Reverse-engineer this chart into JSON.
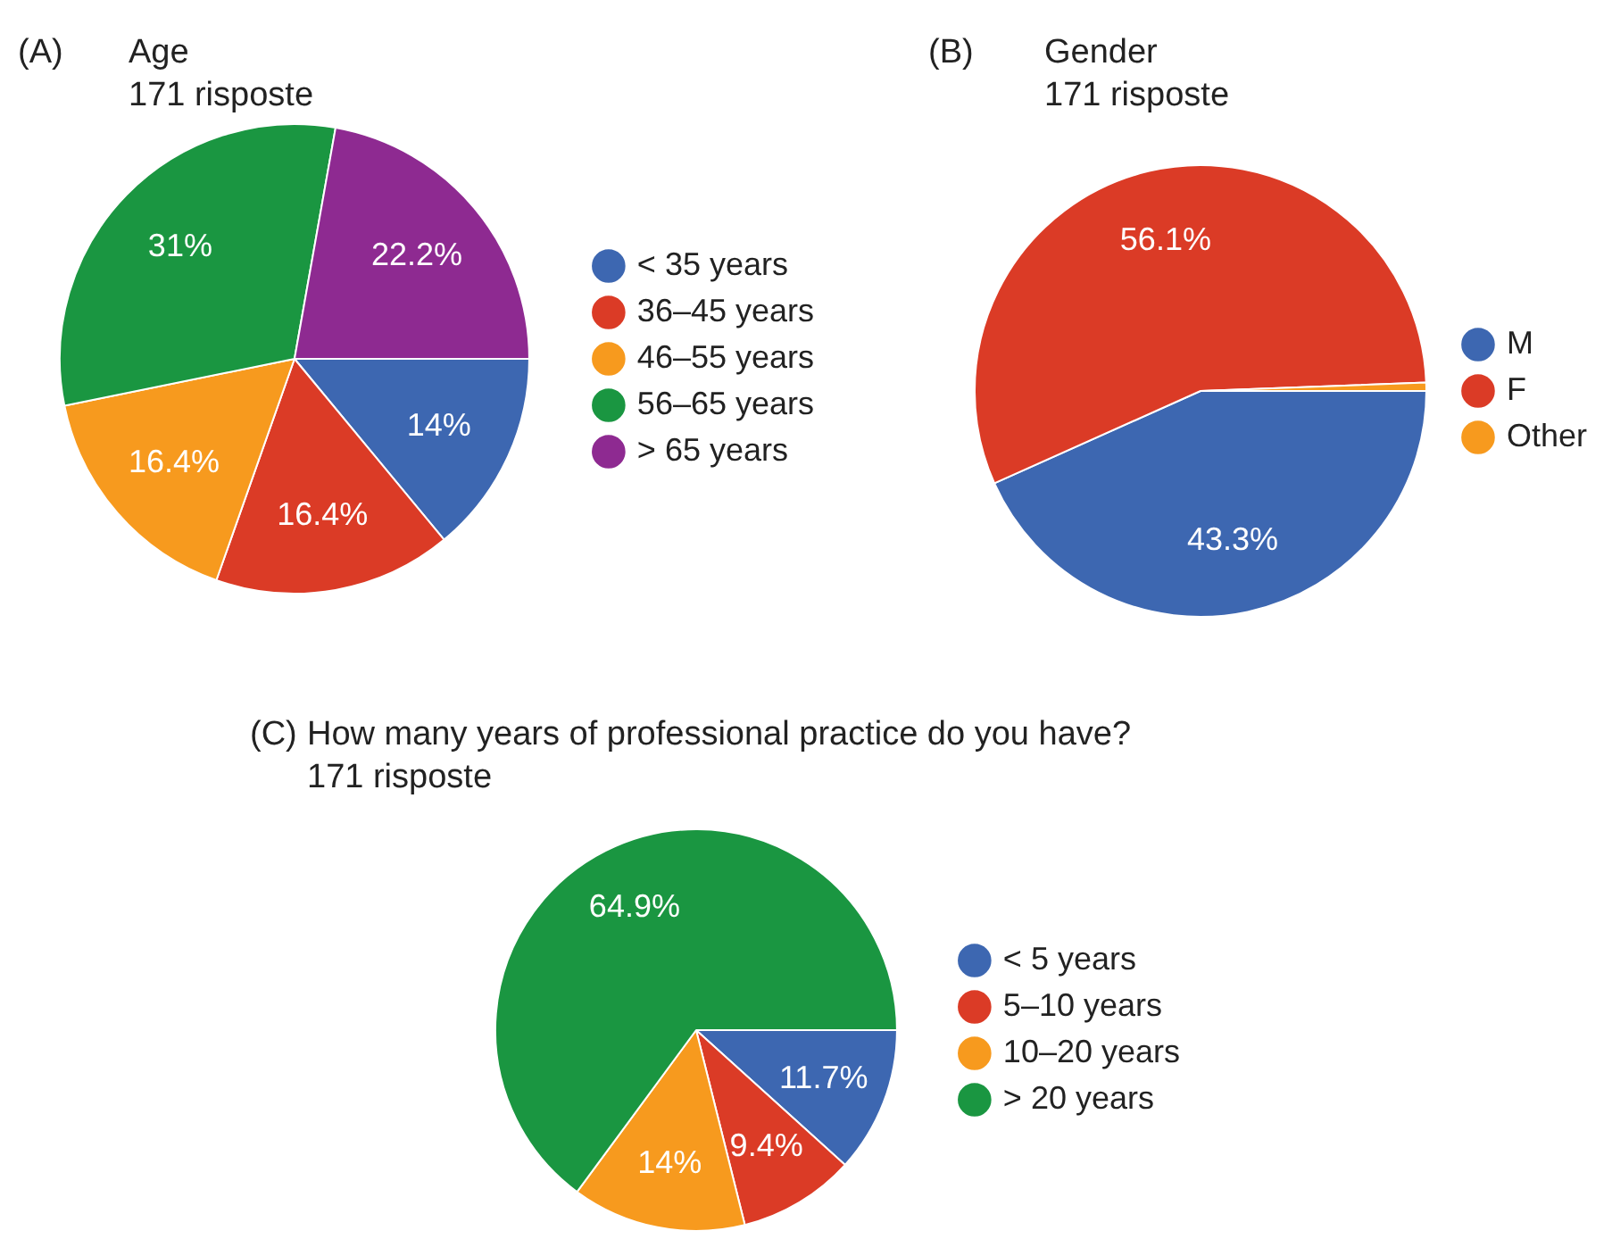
{
  "chart_data": [
    {
      "type": "pie",
      "title": "Age",
      "subtitle": "171 risposte",
      "annotations": [
        "(A)"
      ],
      "categories": [
        "< 35 years",
        "36–45 years",
        "46–55 years",
        "56–65 years",
        "> 65 years"
      ],
      "values": [
        14,
        16.4,
        16.4,
        31,
        22.2
      ],
      "colors": [
        "#3d67b1",
        "#db3b26",
        "#f79a1e",
        "#1a9641",
        "#8e2a91"
      ],
      "value_labels": [
        "14%",
        "16.4%",
        "16.4%",
        "31%",
        "22.2%"
      ],
      "legend": "right"
    },
    {
      "type": "pie",
      "title": "Gender",
      "subtitle": "171 risposte",
      "annotations": [
        "(B)"
      ],
      "categories": [
        "M",
        "F",
        "Other"
      ],
      "values": [
        43.3,
        56.1,
        0.6
      ],
      "colors": [
        "#3d67b1",
        "#db3b26",
        "#f79a1e"
      ],
      "value_labels": [
        "43.3%",
        "56.1%",
        null
      ],
      "legend": "right"
    },
    {
      "type": "pie",
      "title": "How many years of professional practice do you have?",
      "subtitle": "171 risposte",
      "annotations": [
        "(C)"
      ],
      "categories": [
        "< 5 years",
        "5–10 years",
        "10–20 years",
        "> 20 years"
      ],
      "values": [
        11.7,
        9.4,
        14,
        64.9
      ],
      "colors": [
        "#3d67b1",
        "#db3b26",
        "#f79a1e",
        "#1a9641"
      ],
      "value_labels": [
        "11.7%",
        "9.4%",
        "14%",
        "64.9%"
      ],
      "legend": "right"
    }
  ]
}
